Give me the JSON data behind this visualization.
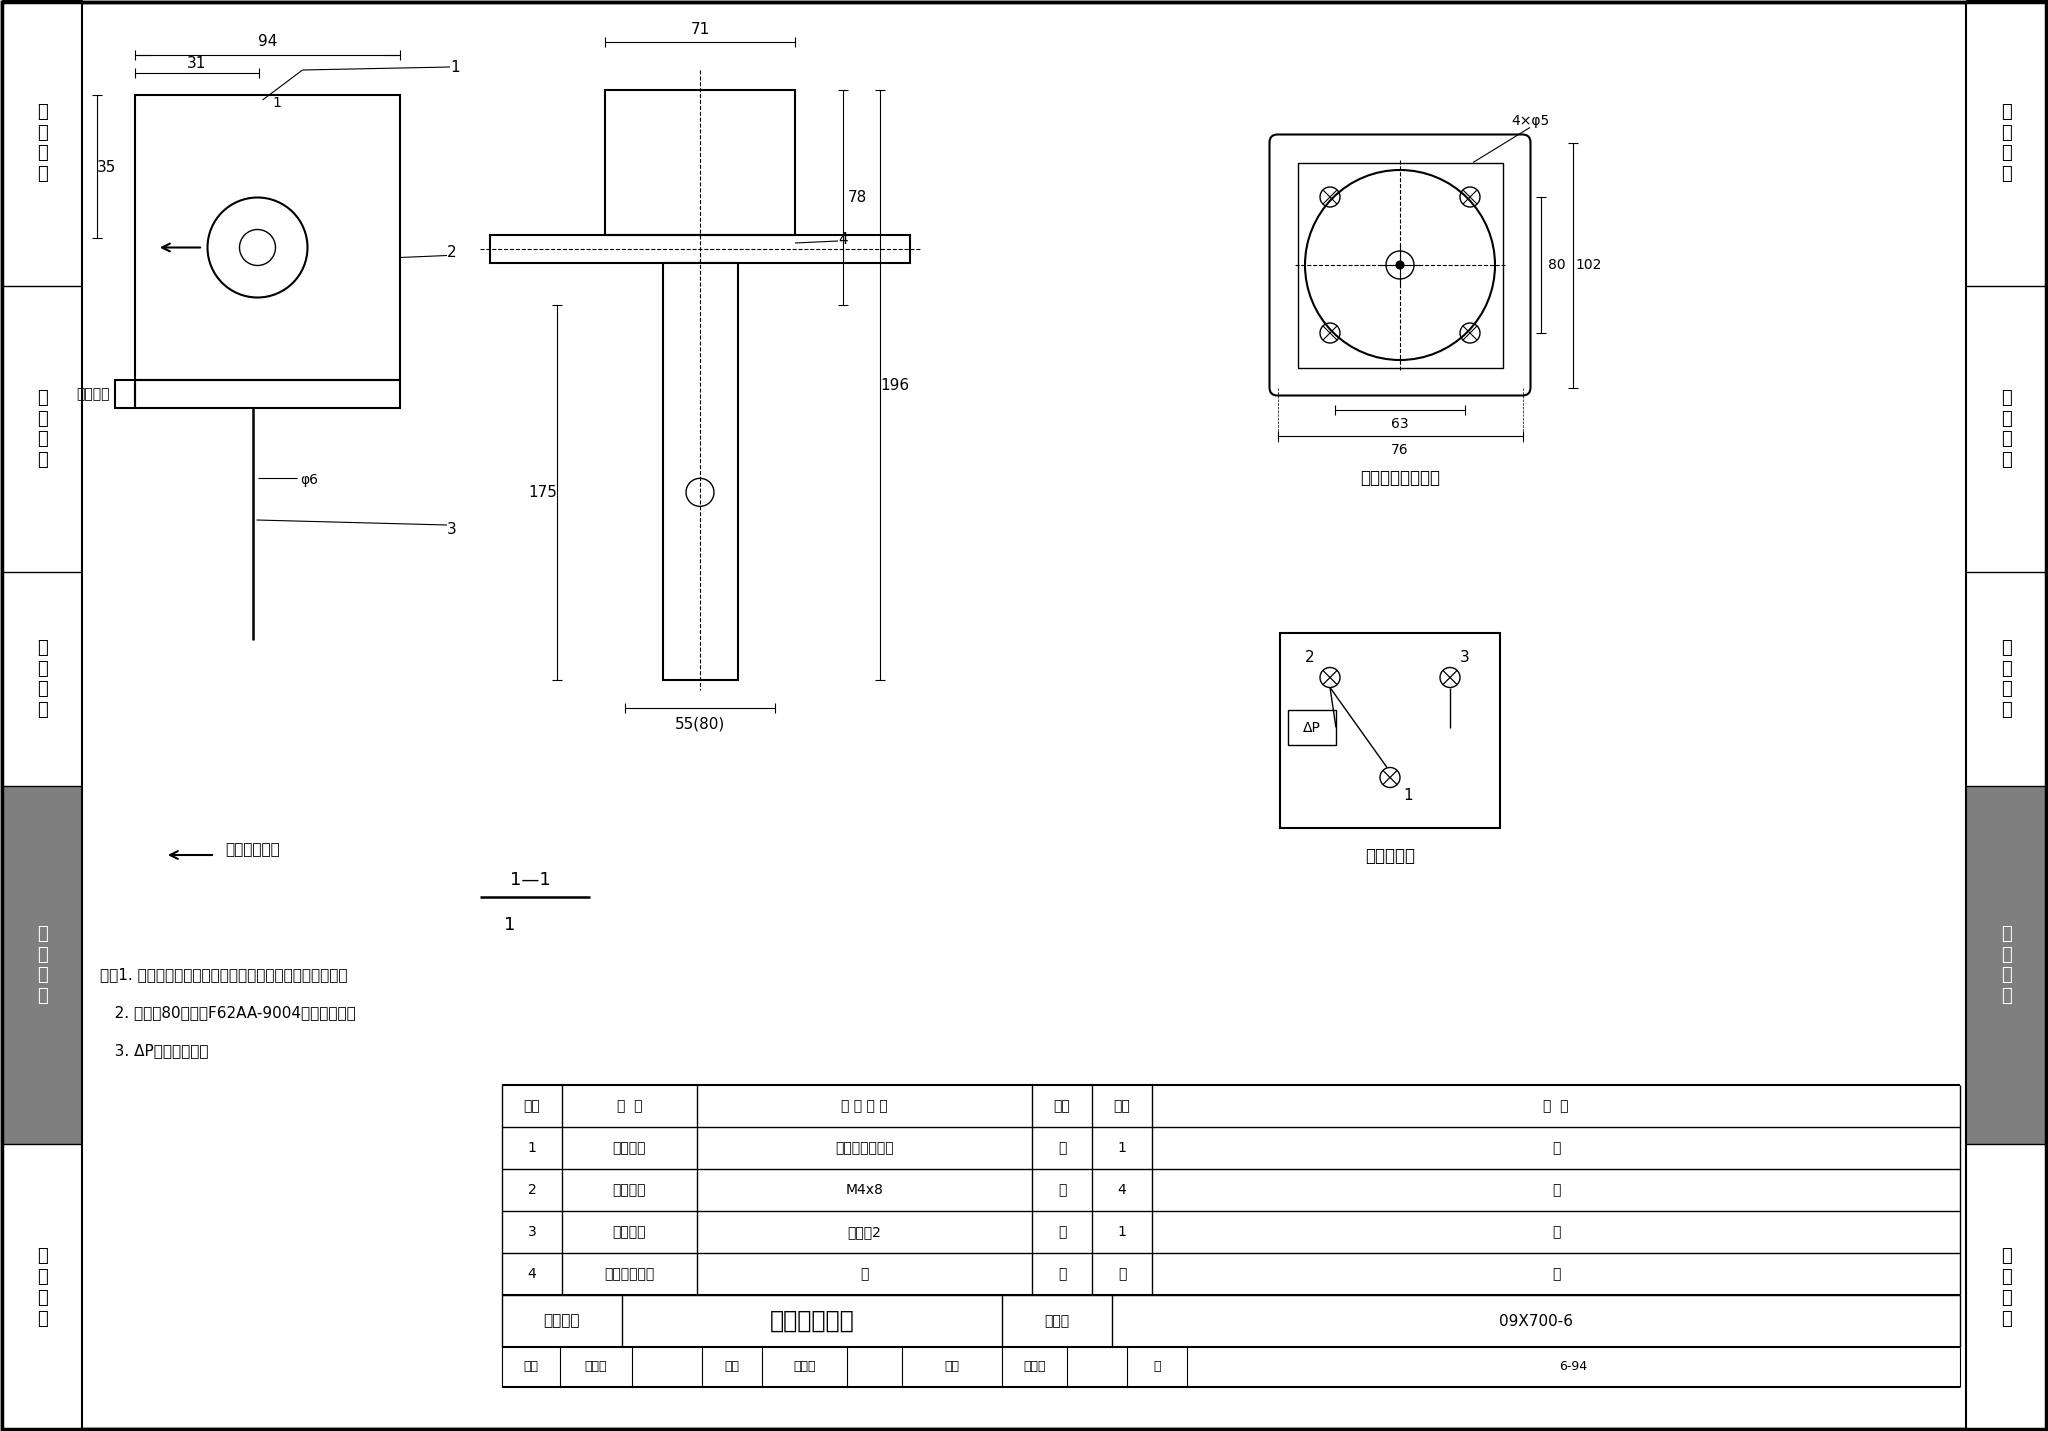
{
  "title": "气流开关安装",
  "figure_number": "09X700-6",
  "page": "6-94",
  "background_color": "#ffffff",
  "notes": [
    "注：1. 气流开关可由工程设计确定，本图安装方式供参考。",
    "   2. 图中（80）值为F62AA-9004的叶片宽度。",
    "   3. ΔP为压差指示。"
  ],
  "table_header": [
    "序号",
    "名  称",
    "型 号 规 格",
    "单位",
    "数量",
    "备  注"
  ],
  "table_rows": [
    [
      "1",
      "气流开关",
      "由工程设计确定",
      "套",
      "1",
      "－"
    ],
    [
      "2",
      "自攻螺丝",
      "M4x8",
      "个",
      "4",
      "－"
    ],
    [
      "3",
      "密封胶垫",
      "橡胶厚2",
      "块",
      "1",
      "－"
    ],
    [
      "4",
      "气流开关底板",
      "－",
      "个",
      "－",
      "－"
    ]
  ],
  "left_sections": [
    {
      "label": "机\n房\n工\n程",
      "highlighted": false
    },
    {
      "label": "供\n电\n电\n源",
      "highlighted": false
    },
    {
      "label": "缆\n线\n敷\n设",
      "highlighted": false
    },
    {
      "label": "设\n备\n安\n装",
      "highlighted": true
    },
    {
      "label": "防\n雷\n接\n地",
      "highlighted": false
    }
  ],
  "section_boundaries": [
    0,
    286,
    572,
    786,
    1144,
    1431
  ]
}
